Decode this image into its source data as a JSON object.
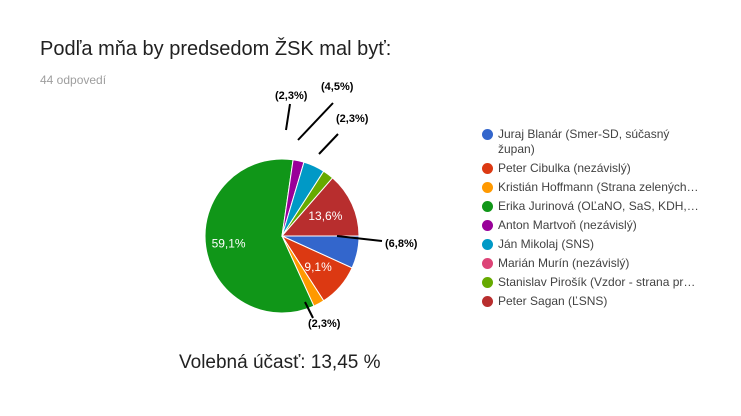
{
  "header": {
    "title": "Podľa mňa by predsedom ŽSK mal byť:",
    "responses": "44 odpovedí"
  },
  "footer": {
    "turnout": "Volebná účasť: 13,45 %"
  },
  "chart_data": {
    "type": "pie",
    "title": "Podľa mňa by predsedom ŽSK mal byť:",
    "slices": [
      {
        "name": "Juraj Blanár (Smer-SD, súčasný župan)",
        "value": 6.8,
        "label": "(6,8%)",
        "color": "#3366cc"
      },
      {
        "name": "Peter Cibulka (nezávislý)",
        "value": 9.1,
        "label": "9,1%",
        "color": "#dc3912"
      },
      {
        "name": "Kristián Hoffmann (Strana zelených…",
        "value": 2.3,
        "label": "(2,3%)",
        "color": "#ff9900"
      },
      {
        "name": "Erika Jurinová (OĽaNO, SaS, KDH,…",
        "value": 59.1,
        "label": "59,1%",
        "color": "#109618"
      },
      {
        "name": "Anton Martvoň (nezávislý)",
        "value": 2.3,
        "label": "(2,3%)",
        "color": "#990099"
      },
      {
        "name": "Ján Mikolaj (SNS)",
        "value": 4.5,
        "label": "(4,5%)",
        "color": "#0099c6"
      },
      {
        "name": "Marián Murín (nezávislý)",
        "value": 0,
        "label": "",
        "color": "#dd4477"
      },
      {
        "name": "Stanislav Pirošík (Vzdor - strana pr…",
        "value": 2.3,
        "label": "(2,3%)",
        "color": "#66aa00"
      },
      {
        "name": "Peter Sagan (ĽSNS)",
        "value": 13.6,
        "label": "13,6%",
        "color": "#b82e2e"
      }
    ],
    "legend_position": "right"
  }
}
